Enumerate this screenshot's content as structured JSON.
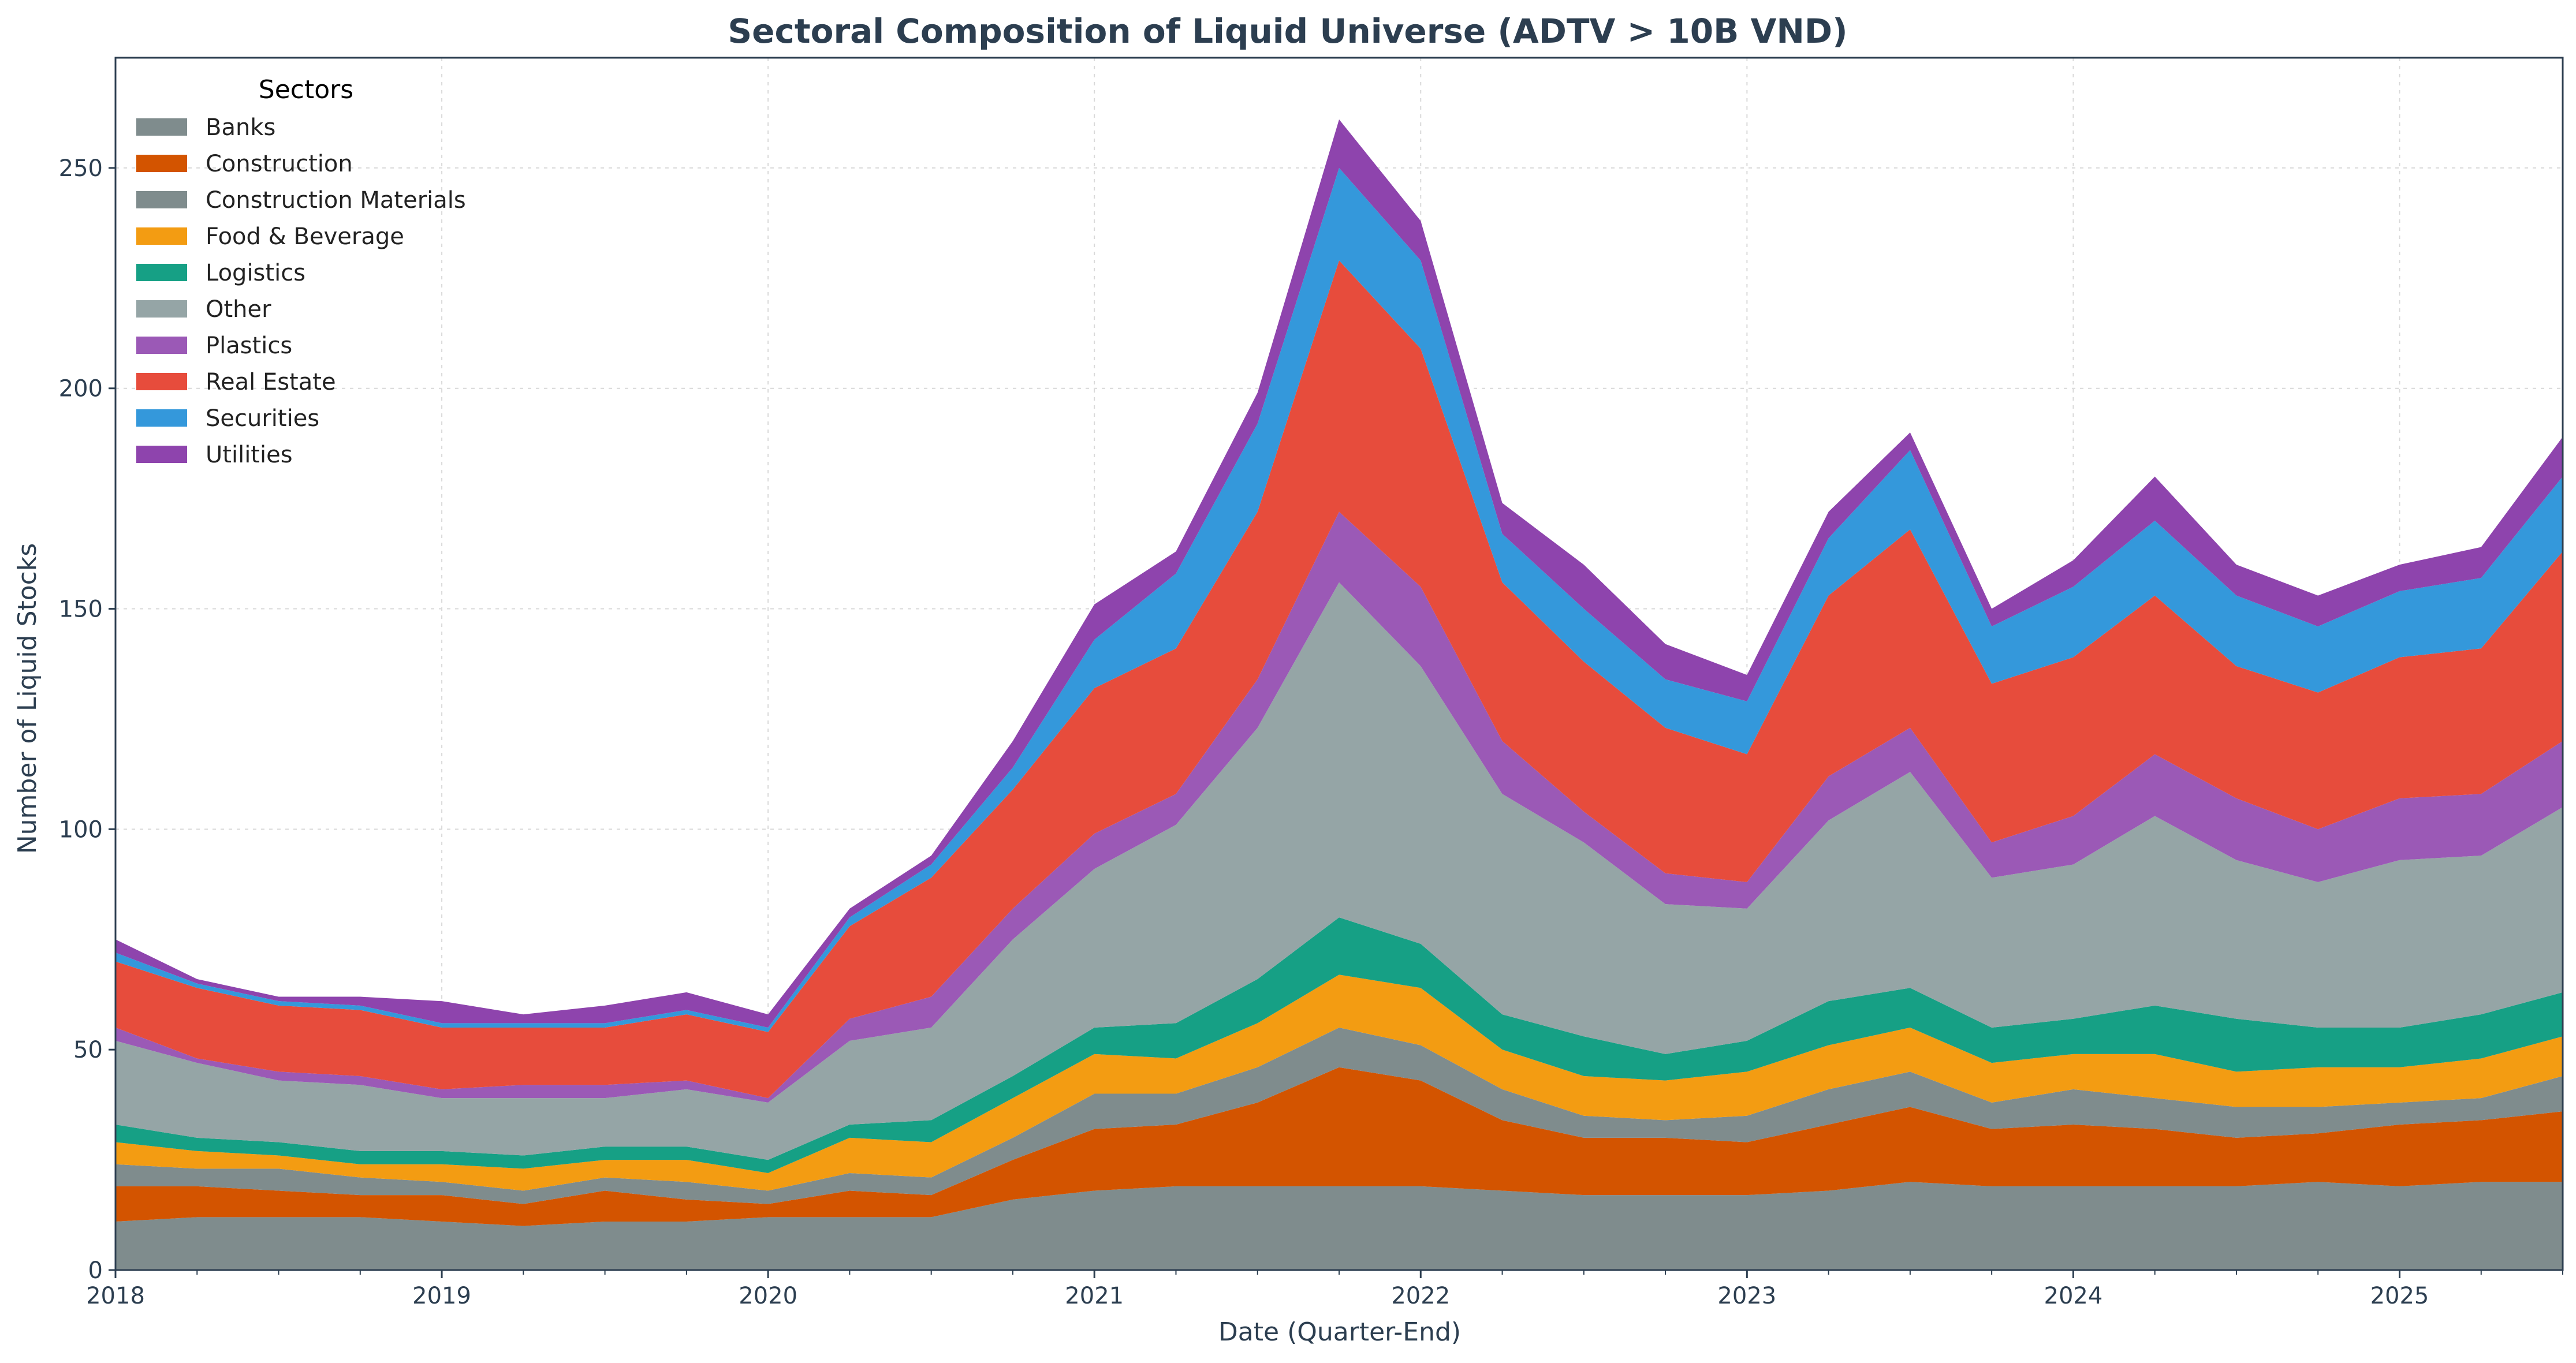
{
  "chart_data": {
    "type": "area",
    "stacked": true,
    "title": "Sectoral Composition of Liquid Universe (ADTV > 10B VND)",
    "xlabel": "Date (Quarter-End)",
    "ylabel": "Number of Liquid Stocks",
    "ylim": [
      0,
      275
    ],
    "xlim": [
      "2018-01",
      "2025-07"
    ],
    "grid": true,
    "legend": {
      "title": "Sectors",
      "placement": "top-left"
    },
    "x_ticks": [
      "2018",
      "2019",
      "2020",
      "2021",
      "2022",
      "2023",
      "2024",
      "2025"
    ],
    "y_ticks": [
      "0",
      "50",
      "100",
      "150",
      "200",
      "250"
    ],
    "x": [
      "2018-Q1",
      "2018-Q2",
      "2018-Q3",
      "2018-Q4",
      "2019-Q1",
      "2019-Q2",
      "2019-Q3",
      "2019-Q4",
      "2020-Q1",
      "2020-Q2",
      "2020-Q3",
      "2020-Q4",
      "2021-Q1",
      "2021-Q2",
      "2021-Q3",
      "2021-Q4",
      "2022-Q1",
      "2022-Q2",
      "2022-Q3",
      "2022-Q4",
      "2023-Q1",
      "2023-Q2",
      "2023-Q3",
      "2023-Q4",
      "2024-Q1",
      "2024-Q2",
      "2024-Q3",
      "2024-Q4",
      "2025-Q1",
      "2025-Q2",
      "2025-Q3"
    ],
    "series": [
      {
        "name": "Banks",
        "color": "#7f8c8d",
        "values": [
          11,
          12,
          12,
          12,
          11,
          10,
          11,
          11,
          12,
          12,
          12,
          16,
          18,
          19,
          19,
          19,
          19,
          18,
          17,
          17,
          17,
          18,
          20,
          19,
          19,
          19,
          19,
          20,
          19,
          20,
          20
        ]
      },
      {
        "name": "Construction",
        "color": "#d35400",
        "values": [
          8,
          7,
          6,
          5,
          6,
          5,
          7,
          5,
          3,
          6,
          5,
          9,
          14,
          14,
          19,
          27,
          24,
          16,
          13,
          13,
          12,
          15,
          17,
          13,
          14,
          13,
          11,
          11,
          14,
          14,
          16
        ]
      },
      {
        "name": "Construction Materials",
        "color": "#7f8c8d",
        "values": [
          5,
          4,
          5,
          4,
          3,
          3,
          3,
          4,
          3,
          4,
          4,
          5,
          8,
          7,
          8,
          9,
          8,
          7,
          5,
          4,
          6,
          8,
          8,
          6,
          8,
          7,
          7,
          6,
          5,
          5,
          8
        ]
      },
      {
        "name": "Food & Beverage",
        "color": "#f39c12",
        "values": [
          5,
          4,
          3,
          3,
          4,
          5,
          4,
          5,
          4,
          8,
          8,
          9,
          9,
          8,
          10,
          12,
          13,
          9,
          9,
          9,
          10,
          10,
          10,
          9,
          8,
          10,
          8,
          9,
          8,
          9,
          9
        ]
      },
      {
        "name": "Logistics",
        "color": "#16a085",
        "values": [
          4,
          3,
          3,
          3,
          3,
          3,
          3,
          3,
          3,
          3,
          5,
          5,
          6,
          8,
          10,
          13,
          10,
          8,
          9,
          6,
          7,
          10,
          9,
          8,
          8,
          11,
          12,
          9,
          9,
          10,
          10
        ]
      },
      {
        "name": "Other",
        "color": "#95a5a6",
        "values": [
          19,
          17,
          14,
          15,
          12,
          13,
          11,
          13,
          13,
          19,
          21,
          31,
          36,
          45,
          57,
          76,
          63,
          50,
          44,
          34,
          30,
          41,
          49,
          34,
          35,
          43,
          36,
          33,
          38,
          36,
          42
        ]
      },
      {
        "name": "Plastics",
        "color": "#9b59b6",
        "values": [
          3,
          1,
          2,
          2,
          2,
          3,
          3,
          2,
          1,
          5,
          7,
          7,
          8,
          7,
          11,
          16,
          18,
          12,
          7,
          7,
          6,
          10,
          10,
          8,
          11,
          14,
          14,
          12,
          14,
          14,
          15
        ]
      },
      {
        "name": "Real Estate",
        "color": "#e74c3c",
        "values": [
          15,
          16,
          15,
          15,
          14,
          13,
          13,
          15,
          15,
          21,
          27,
          27,
          33,
          33,
          38,
          57,
          54,
          36,
          34,
          33,
          29,
          41,
          45,
          36,
          36,
          36,
          30,
          31,
          32,
          33,
          43
        ]
      },
      {
        "name": "Securities",
        "color": "#3498db",
        "values": [
          2,
          1,
          1,
          1,
          1,
          1,
          1,
          1,
          1,
          2,
          3,
          5,
          11,
          17,
          20,
          21,
          20,
          11,
          12,
          11,
          12,
          13,
          18,
          13,
          16,
          17,
          16,
          15,
          15,
          16,
          17
        ]
      },
      {
        "name": "Utilities",
        "color": "#8e44ad",
        "values": [
          3,
          1,
          1,
          2,
          5,
          2,
          4,
          4,
          3,
          2,
          2,
          6,
          8,
          5,
          7,
          11,
          9,
          7,
          10,
          8,
          6,
          6,
          4,
          4,
          6,
          10,
          7,
          7,
          6,
          7,
          9
        ]
      }
    ]
  }
}
